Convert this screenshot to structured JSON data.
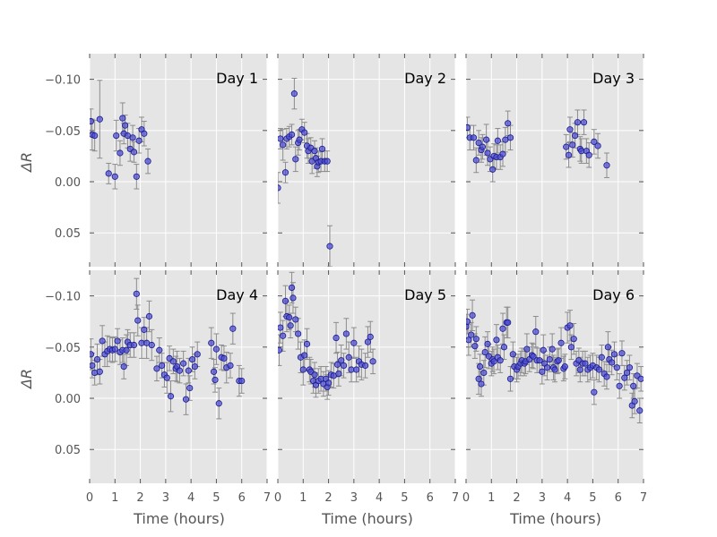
{
  "figure": {
    "xlabel": "Time (hours)",
    "ylabel": "ΔR"
  },
  "style": {
    "panel_bg": "#e5e5e5",
    "grid": "#ffffff",
    "point_fill": "#4c4cd6",
    "point_edge": "#1a1a8c",
    "errorbar": "#8c8c8c",
    "tick_text": "#555555",
    "label_text": "#555555"
  },
  "axes": {
    "x_ticks": [
      0,
      1,
      2,
      3,
      4,
      5,
      6,
      7
    ],
    "y_ticks": [
      -0.1,
      -0.05,
      0.0,
      0.05
    ],
    "y_tick_labels": [
      "−0.10",
      "−0.05",
      "0.00",
      "0.05"
    ],
    "xlim": [
      0,
      7
    ],
    "ylim": [
      -0.125,
      0.083
    ],
    "y_inverted": true
  },
  "chart_data": [
    {
      "type": "scatter",
      "title": "Day 1",
      "x": [
        0.05,
        0.1,
        0.2,
        0.4,
        0.75,
        1.0,
        1.05,
        1.2,
        1.3,
        1.35,
        1.4,
        1.5,
        1.6,
        1.7,
        1.75,
        1.85,
        1.95,
        2.05,
        2.15,
        2.3
      ],
      "y": [
        -0.059,
        -0.046,
        -0.045,
        -0.061,
        -0.008,
        -0.005,
        -0.045,
        -0.028,
        -0.062,
        -0.047,
        -0.055,
        -0.045,
        -0.032,
        -0.043,
        -0.029,
        -0.005,
        -0.04,
        -0.051,
        -0.047,
        -0.02
      ],
      "err": [
        0.012,
        0.015,
        0.015,
        0.038,
        0.01,
        0.012,
        0.015,
        0.012,
        0.015,
        0.01,
        0.01,
        0.012,
        0.012,
        0.012,
        0.01,
        0.012,
        0.012,
        0.012,
        0.012,
        0.012
      ]
    },
    {
      "type": "scatter",
      "title": "Day 2",
      "x": [
        0.0,
        0.1,
        0.2,
        0.3,
        0.35,
        0.45,
        0.55,
        0.65,
        0.7,
        0.8,
        0.85,
        0.95,
        1.05,
        1.15,
        1.2,
        1.3,
        1.35,
        1.45,
        1.5,
        1.55,
        1.6,
        1.7,
        1.75,
        1.85,
        1.95,
        2.05
      ],
      "y": [
        0.006,
        -0.042,
        -0.036,
        -0.009,
        -0.042,
        -0.044,
        -0.046,
        -0.086,
        -0.022,
        -0.038,
        -0.041,
        -0.051,
        -0.048,
        -0.035,
        -0.03,
        -0.033,
        -0.02,
        -0.03,
        -0.023,
        -0.015,
        -0.019,
        -0.02,
        -0.032,
        -0.02,
        -0.02,
        0.063
      ],
      "err": [
        0.015,
        0.01,
        0.015,
        0.01,
        0.01,
        0.01,
        0.01,
        0.015,
        0.012,
        0.012,
        0.01,
        0.01,
        0.01,
        0.012,
        0.012,
        0.01,
        0.012,
        0.01,
        0.01,
        0.01,
        0.01,
        0.01,
        0.01,
        0.01,
        0.01,
        0.02
      ]
    },
    {
      "type": "scatter",
      "title": "Day 3",
      "x": [
        0.05,
        0.15,
        0.3,
        0.4,
        0.5,
        0.6,
        0.65,
        0.8,
        0.85,
        0.95,
        1.05,
        1.1,
        1.2,
        1.25,
        1.35,
        1.45,
        1.55,
        1.65,
        1.75,
        3.95,
        4.05,
        4.1,
        4.2,
        4.3,
        4.4,
        4.5,
        4.55,
        4.65,
        4.75,
        4.85,
        5.05,
        5.2,
        5.55
      ],
      "y": [
        -0.053,
        -0.043,
        -0.043,
        -0.021,
        -0.038,
        -0.031,
        -0.034,
        -0.041,
        -0.028,
        -0.022,
        -0.012,
        -0.025,
        -0.024,
        -0.04,
        -0.024,
        -0.027,
        -0.041,
        -0.057,
        -0.043,
        -0.034,
        -0.026,
        -0.051,
        -0.036,
        -0.045,
        -0.058,
        -0.032,
        -0.03,
        -0.058,
        -0.03,
        -0.026,
        -0.039,
        -0.035,
        -0.016
      ],
      "err": [
        0.01,
        0.012,
        0.012,
        0.012,
        0.012,
        0.012,
        0.012,
        0.015,
        0.012,
        0.012,
        0.012,
        0.012,
        0.012,
        0.012,
        0.012,
        0.012,
        0.012,
        0.012,
        0.012,
        0.012,
        0.012,
        0.012,
        0.012,
        0.012,
        0.012,
        0.012,
        0.012,
        0.012,
        0.012,
        0.012,
        0.012,
        0.012,
        0.012
      ]
    },
    {
      "type": "scatter",
      "title": "Day 4",
      "x": [
        0.05,
        0.1,
        0.2,
        0.3,
        0.4,
        0.5,
        0.6,
        0.7,
        0.8,
        0.9,
        1.0,
        1.1,
        1.2,
        1.3,
        1.35,
        1.45,
        1.5,
        1.6,
        1.75,
        1.85,
        1.9,
        2.05,
        2.15,
        2.25,
        2.35,
        2.45,
        2.65,
        2.75,
        2.85,
        2.95,
        3.05,
        3.15,
        3.2,
        3.3,
        3.4,
        3.45,
        3.55,
        3.7,
        3.8,
        3.9,
        3.95,
        4.05,
        4.15,
        4.25,
        4.8,
        4.9,
        4.95,
        5.0,
        5.1,
        5.2,
        5.3,
        5.4,
        5.55,
        5.65,
        5.9,
        6.0
      ],
      "y": [
        -0.043,
        -0.032,
        -0.025,
        -0.038,
        -0.026,
        -0.056,
        -0.043,
        -0.046,
        -0.048,
        -0.047,
        -0.048,
        -0.056,
        -0.045,
        -0.047,
        -0.031,
        -0.047,
        -0.055,
        -0.052,
        -0.052,
        -0.102,
        -0.076,
        -0.054,
        -0.067,
        -0.054,
        -0.08,
        -0.052,
        -0.029,
        -0.047,
        -0.032,
        -0.023,
        -0.02,
        -0.039,
        -0.002,
        -0.036,
        -0.029,
        -0.031,
        -0.027,
        -0.034,
        0.001,
        -0.027,
        -0.01,
        -0.038,
        -0.031,
        -0.043,
        -0.054,
        -0.026,
        -0.018,
        -0.048,
        0.005,
        -0.04,
        -0.039,
        -0.03,
        -0.032,
        -0.068,
        -0.017,
        -0.017
      ],
      "err": [
        0.015,
        0.012,
        0.012,
        0.015,
        0.012,
        0.015,
        0.012,
        0.015,
        0.012,
        0.012,
        0.012,
        0.012,
        0.012,
        0.012,
        0.012,
        0.015,
        0.012,
        0.012,
        0.012,
        0.015,
        0.015,
        0.015,
        0.012,
        0.015,
        0.015,
        0.015,
        0.012,
        0.012,
        0.012,
        0.012,
        0.015,
        0.012,
        0.015,
        0.012,
        0.012,
        0.015,
        0.012,
        0.012,
        0.015,
        0.012,
        0.012,
        0.012,
        0.012,
        0.012,
        0.015,
        0.012,
        0.012,
        0.015,
        0.015,
        0.012,
        0.012,
        0.015,
        0.012,
        0.015,
        0.015,
        0.012
      ]
    },
    {
      "type": "scatter",
      "title": "Day 5",
      "x": [
        0.05,
        0.1,
        0.2,
        0.3,
        0.35,
        0.45,
        0.5,
        0.55,
        0.6,
        0.7,
        0.8,
        0.9,
        1.0,
        1.05,
        1.15,
        1.25,
        1.3,
        1.4,
        1.45,
        1.5,
        1.6,
        1.7,
        1.8,
        1.9,
        1.95,
        2.0,
        2.1,
        2.2,
        2.3,
        2.35,
        2.4,
        2.5,
        2.6,
        2.7,
        2.8,
        2.9,
        3.0,
        3.1,
        3.2,
        3.3,
        3.45,
        3.55,
        3.65,
        3.75
      ],
      "y": [
        -0.047,
        -0.069,
        -0.061,
        -0.095,
        -0.08,
        -0.079,
        -0.071,
        -0.108,
        -0.098,
        -0.077,
        -0.063,
        -0.04,
        -0.028,
        -0.042,
        -0.053,
        -0.028,
        -0.026,
        -0.017,
        -0.023,
        -0.013,
        -0.017,
        -0.019,
        -0.014,
        -0.019,
        -0.011,
        -0.015,
        -0.023,
        -0.022,
        -0.059,
        -0.033,
        -0.024,
        -0.037,
        -0.032,
        -0.063,
        -0.04,
        -0.028,
        -0.054,
        -0.028,
        -0.036,
        -0.033,
        -0.032,
        -0.055,
        -0.06,
        -0.036
      ],
      "err": [
        0.015,
        0.015,
        0.015,
        0.015,
        0.015,
        0.012,
        0.012,
        0.015,
        0.015,
        0.012,
        0.015,
        0.015,
        0.015,
        0.015,
        0.015,
        0.012,
        0.012,
        0.012,
        0.012,
        0.012,
        0.012,
        0.012,
        0.012,
        0.012,
        0.012,
        0.012,
        0.012,
        0.012,
        0.015,
        0.012,
        0.012,
        0.015,
        0.012,
        0.015,
        0.015,
        0.012,
        0.015,
        0.012,
        0.015,
        0.015,
        0.012,
        0.015,
        0.015,
        0.012
      ]
    },
    {
      "type": "scatter",
      "title": "Day 6",
      "x": [
        0.0,
        0.05,
        0.1,
        0.2,
        0.25,
        0.35,
        0.4,
        0.5,
        0.55,
        0.6,
        0.7,
        0.75,
        0.85,
        0.9,
        1.0,
        1.05,
        1.1,
        1.2,
        1.25,
        1.35,
        1.45,
        1.5,
        1.6,
        1.65,
        1.75,
        1.85,
        1.9,
        2.0,
        2.05,
        2.15,
        2.2,
        2.3,
        2.35,
        2.4,
        2.5,
        2.6,
        2.65,
        2.75,
        2.8,
        2.9,
        3.0,
        3.05,
        3.1,
        3.2,
        3.3,
        3.4,
        3.45,
        3.5,
        3.6,
        3.65,
        3.75,
        3.85,
        3.9,
        4.0,
        4.1,
        4.15,
        4.25,
        4.35,
        4.45,
        4.5,
        4.6,
        4.7,
        4.8,
        4.9,
        5.0,
        5.05,
        5.15,
        5.25,
        5.35,
        5.45,
        5.55,
        5.6,
        5.65,
        5.75,
        5.85,
        5.95,
        6.05,
        6.15,
        6.25,
        6.35,
        6.45,
        6.55,
        6.6,
        6.65,
        6.75,
        6.85,
        6.9
      ],
      "y": [
        -0.07,
        -0.075,
        -0.057,
        -0.062,
        -0.081,
        -0.051,
        -0.058,
        -0.019,
        -0.031,
        -0.014,
        -0.025,
        -0.045,
        -0.053,
        -0.041,
        -0.034,
        -0.038,
        -0.036,
        -0.057,
        -0.04,
        -0.037,
        -0.068,
        -0.05,
        -0.074,
        -0.074,
        -0.019,
        -0.043,
        -0.031,
        -0.028,
        -0.031,
        -0.034,
        -0.037,
        -0.034,
        -0.036,
        -0.048,
        -0.038,
        -0.042,
        -0.041,
        -0.065,
        -0.037,
        -0.037,
        -0.026,
        -0.047,
        -0.034,
        -0.03,
        -0.038,
        -0.048,
        -0.03,
        -0.028,
        -0.036,
        -0.037,
        -0.054,
        -0.029,
        -0.031,
        -0.069,
        -0.071,
        -0.05,
        -0.058,
        -0.034,
        -0.037,
        -0.028,
        -0.034,
        -0.034,
        -0.028,
        -0.03,
        -0.032,
        -0.006,
        -0.03,
        -0.028,
        -0.04,
        -0.024,
        -0.021,
        -0.05,
        -0.038,
        -0.035,
        -0.043,
        -0.03,
        -0.012,
        -0.044,
        -0.02,
        -0.025,
        -0.03,
        0.007,
        -0.012,
        0.003,
        -0.022,
        0.012,
        -0.019
      ],
      "err": [
        0.012,
        0.012,
        0.015,
        0.012,
        0.015,
        0.012,
        0.012,
        0.015,
        0.012,
        0.012,
        0.012,
        0.015,
        0.012,
        0.012,
        0.012,
        0.012,
        0.012,
        0.015,
        0.012,
        0.012,
        0.015,
        0.012,
        0.015,
        0.015,
        0.012,
        0.012,
        0.012,
        0.012,
        0.012,
        0.012,
        0.012,
        0.012,
        0.012,
        0.015,
        0.012,
        0.012,
        0.012,
        0.015,
        0.012,
        0.012,
        0.012,
        0.015,
        0.012,
        0.012,
        0.012,
        0.015,
        0.012,
        0.012,
        0.012,
        0.012,
        0.015,
        0.012,
        0.012,
        0.015,
        0.015,
        0.012,
        0.015,
        0.012,
        0.012,
        0.012,
        0.012,
        0.012,
        0.012,
        0.012,
        0.012,
        0.012,
        0.012,
        0.012,
        0.012,
        0.012,
        0.012,
        0.015,
        0.012,
        0.012,
        0.012,
        0.012,
        0.012,
        0.012,
        0.012,
        0.012,
        0.012,
        0.012,
        0.012,
        0.012,
        0.012,
        0.012,
        0.012
      ]
    }
  ]
}
